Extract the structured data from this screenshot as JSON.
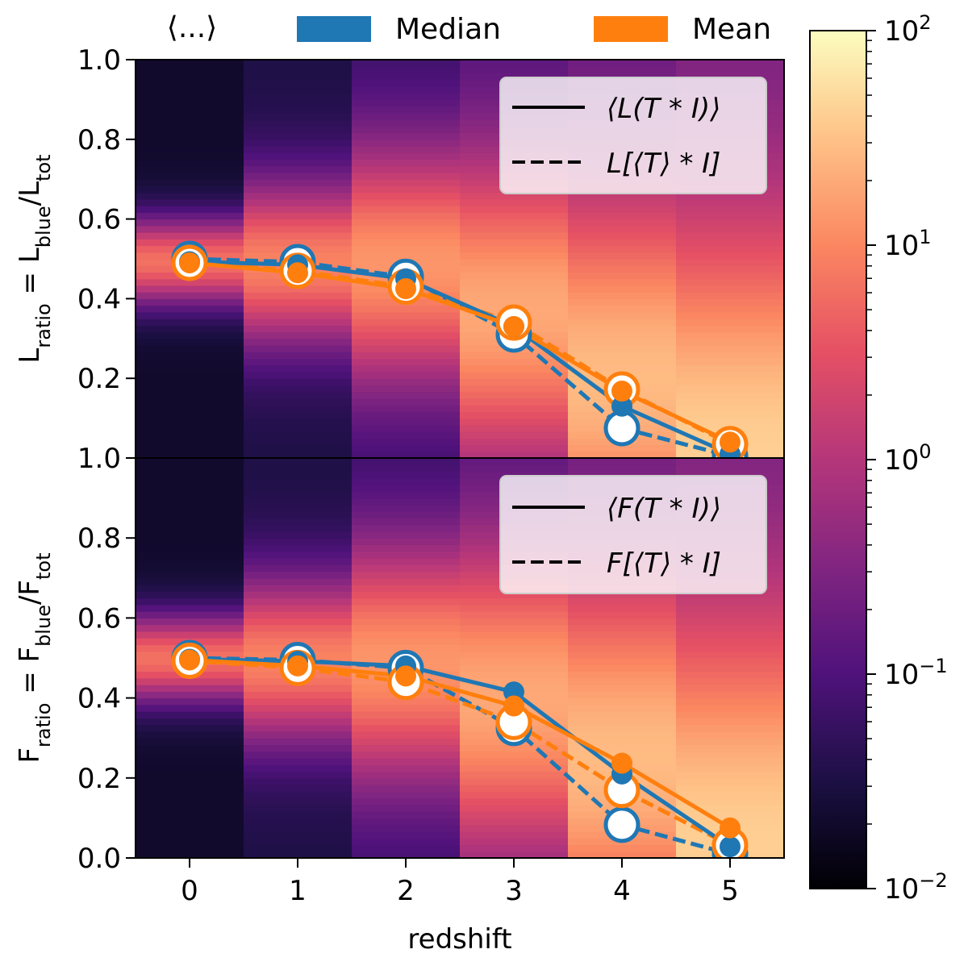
{
  "top_legend": {
    "bracket_label": "⟨...⟩",
    "entries": [
      {
        "label": "Median",
        "color": "#1f77b4"
      },
      {
        "label": "Mean",
        "color": "#ff7f0e"
      }
    ]
  },
  "colorbar": {
    "scale": "log",
    "range": [
      0.01,
      100
    ],
    "colormap": "magma",
    "ticks": [
      {
        "value": 100,
        "base": "10",
        "exp": "2"
      },
      {
        "value": 10,
        "base": "10",
        "exp": "1"
      },
      {
        "value": 1,
        "base": "10",
        "exp": "0"
      },
      {
        "value": 0.1,
        "base": "10",
        "exp": "−1"
      },
      {
        "value": 0.01,
        "base": "10",
        "exp": "−2"
      }
    ]
  },
  "xaxis": {
    "label": "redshift",
    "ticks": [
      "0",
      "1",
      "2",
      "3",
      "4",
      "5"
    ],
    "range": [
      -0.5,
      5.5
    ]
  },
  "colors": {
    "median": "#1f77b4",
    "mean": "#ff7f0e",
    "open_marker_fill": "#ffffff"
  },
  "chart_data": [
    {
      "type": "line",
      "panel": "top",
      "ylabel": {
        "main": "L",
        "sub1": "ratio",
        "eq": " = L",
        "sub2": "blue",
        "slash": "/L",
        "sub3": "tot"
      },
      "ylim": [
        0,
        1
      ],
      "yticks": [
        "0.2",
        "0.4",
        "0.6",
        "0.8",
        "1.0"
      ],
      "yticks_values": [
        0.2,
        0.4,
        0.6,
        0.8,
        1.0
      ],
      "legend": {
        "position": "top-right",
        "solid_label": "⟨L(T * I)⟩",
        "dashed_label": "L[⟨T⟩ * I]"
      },
      "x": [
        0,
        1,
        2,
        3,
        4,
        5
      ],
      "heatmap_peak": [
        0.495,
        0.49,
        0.485,
        0.37,
        0.2,
        0.02
      ],
      "series": [
        {
          "name": "Median",
          "style": "solid",
          "marker": "filled",
          "values": [
            0.493,
            0.485,
            0.45,
            0.33,
            0.13,
            0.01
          ]
        },
        {
          "name": "Mean",
          "style": "solid",
          "marker": "filled",
          "values": [
            0.49,
            0.465,
            0.425,
            0.33,
            0.168,
            0.04
          ]
        },
        {
          "name": "Median",
          "style": "dashed",
          "marker": "open",
          "values": [
            0.5,
            0.492,
            0.455,
            0.31,
            0.075,
            0.005
          ]
        },
        {
          "name": "Mean",
          "style": "dashed",
          "marker": "open",
          "values": [
            0.49,
            0.47,
            0.43,
            0.34,
            0.172,
            0.035
          ]
        }
      ]
    },
    {
      "type": "line",
      "panel": "bottom",
      "ylabel": {
        "main": "F",
        "sub1": "ratio",
        "eq": " = F",
        "sub2": "blue",
        "slash": "/F",
        "sub3": "tot"
      },
      "ylim": [
        0,
        1
      ],
      "yticks": [
        "0.0",
        "0.2",
        "0.4",
        "0.6",
        "0.8",
        "1.0"
      ],
      "yticks_values": [
        0.0,
        0.2,
        0.4,
        0.6,
        0.8,
        1.0
      ],
      "legend": {
        "position": "top-right",
        "solid_label": "⟨F(T * I)⟩",
        "dashed_label": "F[⟨T⟩ * I]"
      },
      "x": [
        0,
        1,
        2,
        3,
        4,
        5
      ],
      "heatmap_peak": [
        0.5,
        0.495,
        0.49,
        0.4,
        0.25,
        0.04
      ],
      "series": [
        {
          "name": "Median",
          "style": "solid",
          "marker": "filled",
          "values": [
            0.497,
            0.492,
            0.48,
            0.415,
            0.21,
            0.028
          ]
        },
        {
          "name": "Mean",
          "style": "solid",
          "marker": "filled",
          "values": [
            0.495,
            0.48,
            0.455,
            0.38,
            0.237,
            0.075
          ]
        },
        {
          "name": "Median",
          "style": "dashed",
          "marker": "open",
          "values": [
            0.5,
            0.495,
            0.475,
            0.325,
            0.083,
            0.01
          ]
        },
        {
          "name": "Mean",
          "style": "dashed",
          "marker": "open",
          "values": [
            0.493,
            0.475,
            0.44,
            0.34,
            0.17,
            0.032
          ]
        }
      ]
    }
  ]
}
